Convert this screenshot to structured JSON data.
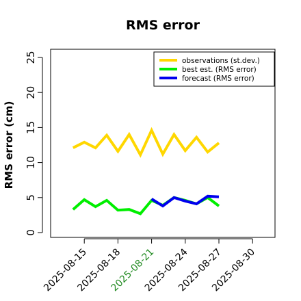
{
  "chart_data": {
    "type": "line",
    "title": "RMS error",
    "xlabel": "",
    "ylabel": "RMS error (cm)",
    "ylim": [
      0,
      25
    ],
    "yticks": [
      0,
      5,
      10,
      15,
      20,
      25
    ],
    "xlim": [
      "2025-08-12",
      "2025-09-01"
    ],
    "xticks": [
      {
        "date": "2025-08-15",
        "label": "2025-08-15",
        "color": "#000000"
      },
      {
        "date": "2025-08-18",
        "label": "2025-08-18",
        "color": "#000000"
      },
      {
        "date": "2025-08-21",
        "label": "2025-08-21",
        "color": "#228b22"
      },
      {
        "date": "2025-08-24",
        "label": "2025-08-24",
        "color": "#000000"
      },
      {
        "date": "2025-08-27",
        "label": "2025-08-27",
        "color": "#000000"
      },
      {
        "date": "2025-08-30",
        "label": "2025-08-30",
        "color": "#000000"
      }
    ],
    "grid": false,
    "legend_position": "top-right",
    "series": [
      {
        "name": "observations (st.dev.)",
        "color": "#ffd700",
        "x": [
          "2025-08-14",
          "2025-08-15",
          "2025-08-16",
          "2025-08-17",
          "2025-08-18",
          "2025-08-19",
          "2025-08-20",
          "2025-08-21",
          "2025-08-22",
          "2025-08-23",
          "2025-08-24",
          "2025-08-25",
          "2025-08-26",
          "2025-08-27"
        ],
        "y": [
          12.1,
          12.9,
          12.1,
          13.9,
          11.6,
          14.0,
          11.1,
          14.6,
          11.2,
          14.0,
          11.7,
          13.6,
          11.5,
          12.8
        ]
      },
      {
        "name": "best est. (RMS error)",
        "color": "#00ee00",
        "x": [
          "2025-08-14",
          "2025-08-15",
          "2025-08-16",
          "2025-08-17",
          "2025-08-18",
          "2025-08-19",
          "2025-08-20",
          "2025-08-21",
          "2025-08-22",
          "2025-08-23",
          "2025-08-24",
          "2025-08-25",
          "2025-08-26",
          "2025-08-27"
        ],
        "y": [
          3.3,
          4.7,
          3.7,
          4.6,
          3.2,
          3.3,
          2.7,
          4.6,
          3.9,
          5.0,
          4.6,
          4.1,
          5.0,
          3.8
        ]
      },
      {
        "name": "forecast (RMS error)",
        "color": "#0000ee",
        "x": [
          "2025-08-21",
          "2025-08-22",
          "2025-08-23",
          "2025-08-24",
          "2025-08-25",
          "2025-08-26",
          "2025-08-27"
        ],
        "y": [
          4.8,
          3.8,
          5.0,
          4.5,
          4.1,
          5.2,
          5.1
        ]
      }
    ]
  }
}
